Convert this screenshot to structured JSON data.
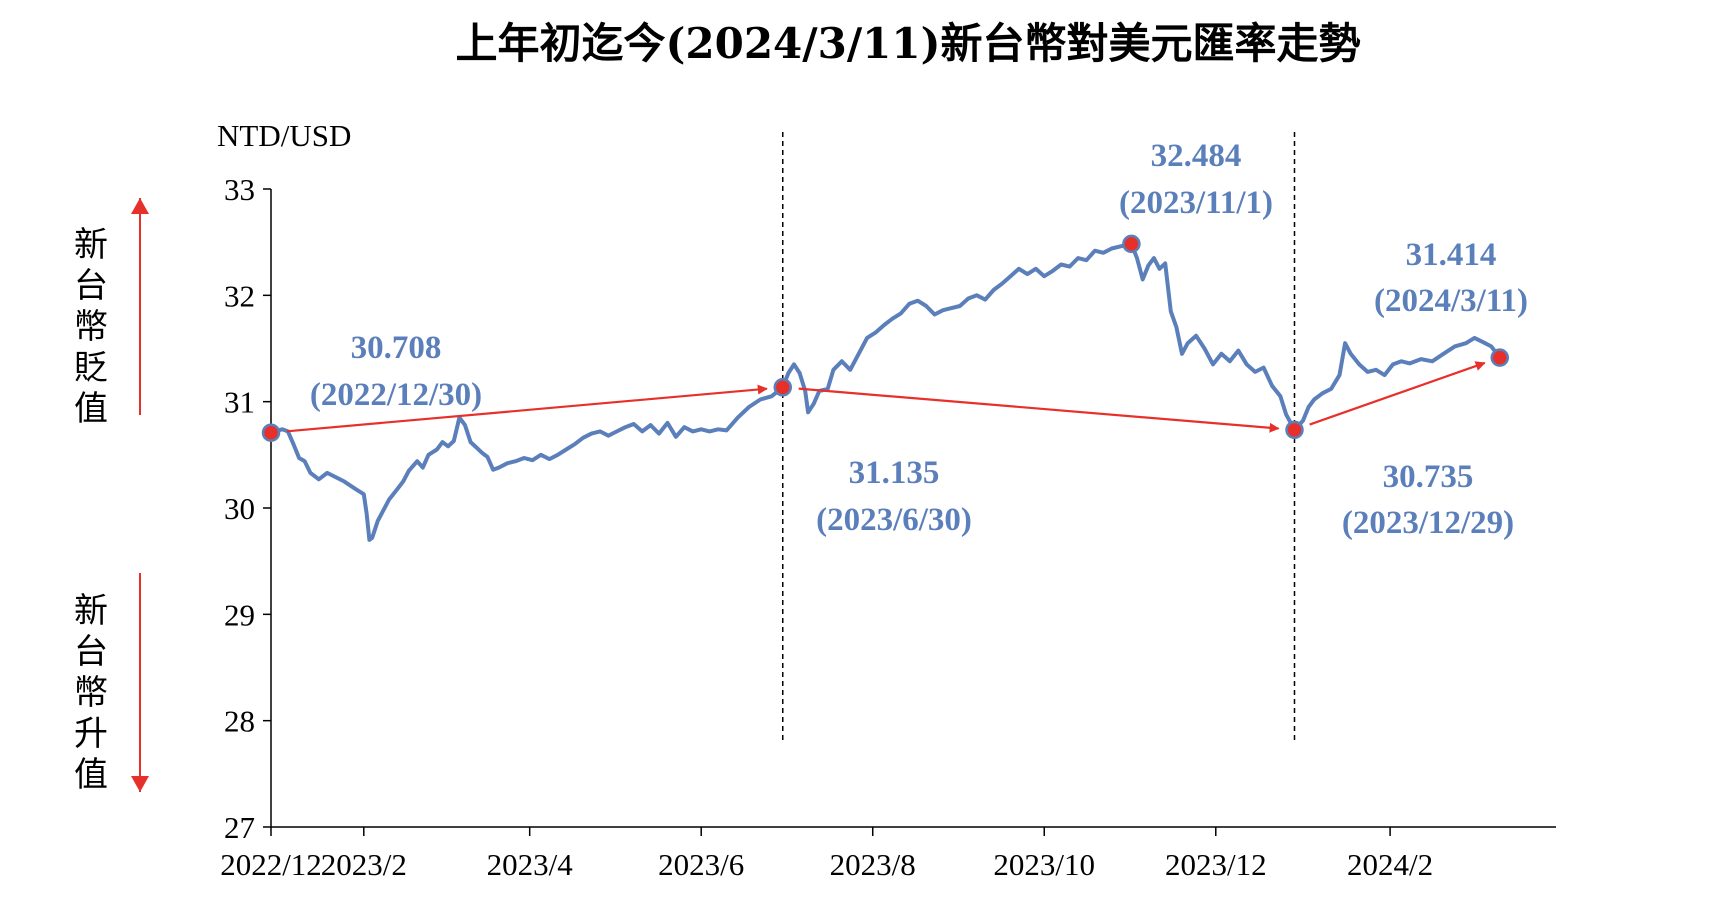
{
  "chart_data": {
    "type": "line",
    "title": "上年初迄今(2024/3/11)新台幣對美元匯率走勢",
    "ylabel": "NTD/USD",
    "ylim": [
      27,
      33
    ],
    "yticks": [
      "27",
      "28",
      "29",
      "30",
      "31",
      "32",
      "33"
    ],
    "xlabels": [
      "2022/12",
      "2023/2",
      "2023/4",
      "2023/6",
      "2023/8",
      "2023/10",
      "2023/12",
      "2024/2"
    ],
    "xlim": [
      "2022-12-30",
      "2024-03-31"
    ],
    "grid": false,
    "side_labels": {
      "up": "新台幣貶值",
      "down": "新台幣升值"
    },
    "colors": {
      "line": "#5b7fba",
      "marker": "#e8302a",
      "arrow": "#e8302a",
      "annotation": "#5b7fba"
    },
    "series": [
      {
        "values": [
          [
            "2022-12-30",
            30.71
          ],
          [
            "2023-01-03",
            30.74
          ],
          [
            "2023-01-05",
            30.72
          ],
          [
            "2023-01-07",
            30.6
          ],
          [
            "2023-01-09",
            30.47
          ],
          [
            "2023-01-11",
            30.44
          ],
          [
            "2023-01-13",
            30.33
          ],
          [
            "2023-01-16",
            30.27
          ],
          [
            "2023-01-19",
            30.33
          ],
          [
            "2023-01-25",
            30.25
          ],
          [
            "2023-01-29",
            30.18
          ],
          [
            "2023-02-01",
            30.13
          ],
          [
            "2023-02-02",
            29.95
          ],
          [
            "2023-02-03",
            29.7
          ],
          [
            "2023-02-04",
            29.72
          ],
          [
            "2023-02-06",
            29.88
          ],
          [
            "2023-02-08",
            29.98
          ],
          [
            "2023-02-10",
            30.08
          ],
          [
            "2023-02-13",
            30.18
          ],
          [
            "2023-02-15",
            30.25
          ],
          [
            "2023-02-17",
            30.35
          ],
          [
            "2023-02-20",
            30.44
          ],
          [
            "2023-02-22",
            30.38
          ],
          [
            "2023-02-24",
            30.5
          ],
          [
            "2023-02-27",
            30.55
          ],
          [
            "2023-03-01",
            30.62
          ],
          [
            "2023-03-03",
            30.58
          ],
          [
            "2023-03-05",
            30.63
          ],
          [
            "2023-03-07",
            30.85
          ],
          [
            "2023-03-09",
            30.78
          ],
          [
            "2023-03-11",
            30.62
          ],
          [
            "2023-03-13",
            30.57
          ],
          [
            "2023-03-15",
            30.52
          ],
          [
            "2023-03-17",
            30.48
          ],
          [
            "2023-03-19",
            30.36
          ],
          [
            "2023-03-21",
            30.38
          ],
          [
            "2023-03-24",
            30.42
          ],
          [
            "2023-03-27",
            30.44
          ],
          [
            "2023-03-30",
            30.47
          ],
          [
            "2023-04-02",
            30.45
          ],
          [
            "2023-04-05",
            30.5
          ],
          [
            "2023-04-08",
            30.46
          ],
          [
            "2023-04-11",
            30.5
          ],
          [
            "2023-04-14",
            30.55
          ],
          [
            "2023-04-17",
            30.6
          ],
          [
            "2023-04-20",
            30.66
          ],
          [
            "2023-04-23",
            30.7
          ],
          [
            "2023-04-26",
            30.72
          ],
          [
            "2023-04-29",
            30.68
          ],
          [
            "2023-05-02",
            30.72
          ],
          [
            "2023-05-05",
            30.76
          ],
          [
            "2023-05-08",
            30.79
          ],
          [
            "2023-05-11",
            30.72
          ],
          [
            "2023-05-14",
            30.78
          ],
          [
            "2023-05-17",
            30.7
          ],
          [
            "2023-05-20",
            30.8
          ],
          [
            "2023-05-23",
            30.67
          ],
          [
            "2023-05-26",
            30.76
          ],
          [
            "2023-05-29",
            30.72
          ],
          [
            "2023-06-01",
            30.74
          ],
          [
            "2023-06-04",
            30.72
          ],
          [
            "2023-06-07",
            30.74
          ],
          [
            "2023-06-10",
            30.73
          ],
          [
            "2023-06-14",
            30.85
          ],
          [
            "2023-06-18",
            30.95
          ],
          [
            "2023-06-22",
            31.02
          ],
          [
            "2023-06-26",
            31.05
          ],
          [
            "2023-06-30",
            31.135
          ],
          [
            "2023-07-02",
            31.27
          ],
          [
            "2023-07-04",
            31.35
          ],
          [
            "2023-07-06",
            31.27
          ],
          [
            "2023-07-08",
            31.1
          ],
          [
            "2023-07-09",
            30.9
          ],
          [
            "2023-07-11",
            30.98
          ],
          [
            "2023-07-13",
            31.1
          ],
          [
            "2023-07-16",
            31.12
          ],
          [
            "2023-07-18",
            31.3
          ],
          [
            "2023-07-21",
            31.38
          ],
          [
            "2023-07-24",
            31.3
          ],
          [
            "2023-07-27",
            31.45
          ],
          [
            "2023-07-30",
            31.6
          ],
          [
            "2023-08-02",
            31.65
          ],
          [
            "2023-08-05",
            31.72
          ],
          [
            "2023-08-08",
            31.78
          ],
          [
            "2023-08-11",
            31.83
          ],
          [
            "2023-08-14",
            31.92
          ],
          [
            "2023-08-17",
            31.95
          ],
          [
            "2023-08-20",
            31.9
          ],
          [
            "2023-08-23",
            31.82
          ],
          [
            "2023-08-26",
            31.86
          ],
          [
            "2023-08-29",
            31.88
          ],
          [
            "2023-09-01",
            31.9
          ],
          [
            "2023-09-04",
            31.97
          ],
          [
            "2023-09-07",
            32.0
          ],
          [
            "2023-09-10",
            31.96
          ],
          [
            "2023-09-13",
            32.05
          ],
          [
            "2023-09-16",
            32.11
          ],
          [
            "2023-09-19",
            32.18
          ],
          [
            "2023-09-22",
            32.25
          ],
          [
            "2023-09-25",
            32.2
          ],
          [
            "2023-09-28",
            32.25
          ],
          [
            "2023-10-01",
            32.18
          ],
          [
            "2023-10-04",
            32.23
          ],
          [
            "2023-10-07",
            32.29
          ],
          [
            "2023-10-10",
            32.27
          ],
          [
            "2023-10-13",
            32.35
          ],
          [
            "2023-10-16",
            32.33
          ],
          [
            "2023-10-19",
            32.42
          ],
          [
            "2023-10-22",
            32.4
          ],
          [
            "2023-10-25",
            32.44
          ],
          [
            "2023-10-28",
            32.46
          ],
          [
            "2023-11-01",
            32.484
          ],
          [
            "2023-11-03",
            32.35
          ],
          [
            "2023-11-05",
            32.15
          ],
          [
            "2023-11-07",
            32.28
          ],
          [
            "2023-11-09",
            32.35
          ],
          [
            "2023-11-11",
            32.25
          ],
          [
            "2023-11-13",
            32.3
          ],
          [
            "2023-11-15",
            31.85
          ],
          [
            "2023-11-17",
            31.7
          ],
          [
            "2023-11-19",
            31.45
          ],
          [
            "2023-11-21",
            31.55
          ],
          [
            "2023-11-24",
            31.62
          ],
          [
            "2023-11-27",
            31.5
          ],
          [
            "2023-11-30",
            31.35
          ],
          [
            "2023-12-03",
            31.45
          ],
          [
            "2023-12-06",
            31.38
          ],
          [
            "2023-12-09",
            31.48
          ],
          [
            "2023-12-12",
            31.35
          ],
          [
            "2023-12-15",
            31.28
          ],
          [
            "2023-12-18",
            31.32
          ],
          [
            "2023-12-21",
            31.15
          ],
          [
            "2023-12-24",
            31.05
          ],
          [
            "2023-12-26",
            30.88
          ],
          [
            "2023-12-29",
            30.735
          ],
          [
            "2024-01-01",
            30.82
          ],
          [
            "2024-01-03",
            30.95
          ],
          [
            "2024-01-05",
            31.02
          ],
          [
            "2024-01-08",
            31.08
          ],
          [
            "2024-01-11",
            31.12
          ],
          [
            "2024-01-14",
            31.25
          ],
          [
            "2024-01-16",
            31.55
          ],
          [
            "2024-01-18",
            31.45
          ],
          [
            "2024-01-21",
            31.35
          ],
          [
            "2024-01-24",
            31.28
          ],
          [
            "2024-01-27",
            31.3
          ],
          [
            "2024-01-30",
            31.25
          ],
          [
            "2024-02-02",
            31.35
          ],
          [
            "2024-02-05",
            31.38
          ],
          [
            "2024-02-08",
            31.36
          ],
          [
            "2024-02-12",
            31.4
          ],
          [
            "2024-02-16",
            31.38
          ],
          [
            "2024-02-20",
            31.45
          ],
          [
            "2024-02-24",
            31.52
          ],
          [
            "2024-02-28",
            31.55
          ],
          [
            "2024-03-02",
            31.6
          ],
          [
            "2024-03-05",
            31.56
          ],
          [
            "2024-03-08",
            31.52
          ],
          [
            "2024-03-11",
            31.414
          ]
        ]
      }
    ],
    "highlights": [
      {
        "date": "2022-12-30",
        "value": 30.708,
        "label_value": "30.708",
        "label_date": "(2022/12/30)"
      },
      {
        "date": "2023-06-30",
        "value": 31.135,
        "label_value": "31.135",
        "label_date": "(2023/6/30)"
      },
      {
        "date": "2023-11-01",
        "value": 32.484,
        "label_value": "32.484",
        "label_date": "(2023/11/1)"
      },
      {
        "date": "2023-12-29",
        "value": 30.735,
        "label_value": "30.735",
        "label_date": "(2023/12/29)"
      },
      {
        "date": "2024-03-11",
        "value": 31.414,
        "label_value": "31.414",
        "label_date": "(2024/3/11)"
      }
    ],
    "trend_arrows": [
      {
        "from": "2022-12-30",
        "to": "2023-06-30"
      },
      {
        "from": "2023-06-30",
        "to": "2023-12-29"
      },
      {
        "from": "2023-12-29",
        "to": "2024-03-11"
      }
    ],
    "dividers": [
      "2023-06-30",
      "2023-12-29"
    ]
  }
}
